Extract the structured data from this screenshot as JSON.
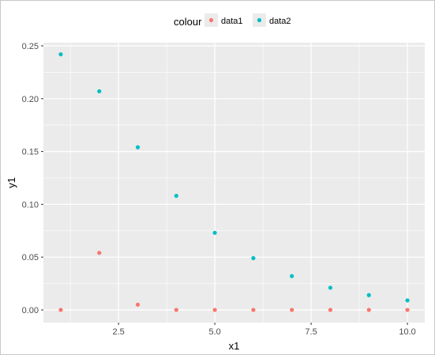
{
  "chart_data": {
    "type": "scatter",
    "title": "",
    "xlabel": "x1",
    "ylabel": "y1",
    "xlim": [
      0.55,
      10.45
    ],
    "ylim": [
      -0.012,
      0.253
    ],
    "x_ticks": [
      2.5,
      5.0,
      7.5,
      10.0
    ],
    "x_tick_labels": [
      "2.5",
      "5.0",
      "7.5",
      "10.0"
    ],
    "x_minor_ticks": [
      1.25,
      3.75,
      6.25,
      8.75
    ],
    "y_ticks": [
      0.0,
      0.05,
      0.1,
      0.15,
      0.2,
      0.25
    ],
    "y_tick_labels": [
      "0.00",
      "0.05",
      "0.10",
      "0.15",
      "0.20",
      "0.25"
    ],
    "y_minor_ticks": [
      0.025,
      0.075,
      0.125,
      0.175,
      0.225
    ],
    "grid": true,
    "legend": {
      "title": "colour",
      "position": "top",
      "entries": [
        "data1",
        "data2"
      ]
    },
    "colors": {
      "data1": "#F8766D",
      "data2": "#00BFC4",
      "panel_background": "#EBEBEB",
      "grid_line": "#FFFFFF"
    },
    "series": [
      {
        "name": "data1",
        "x": [
          1,
          2,
          3,
          4,
          5,
          6,
          7,
          8,
          9,
          10
        ],
        "y": [
          0.0,
          0.054,
          0.005,
          0.0,
          0.0,
          0.0,
          0.0,
          0.0,
          0.0,
          0.0
        ]
      },
      {
        "name": "data2",
        "x": [
          1,
          2,
          3,
          4,
          5,
          6,
          7,
          8,
          9,
          10
        ],
        "y": [
          0.242,
          0.207,
          0.154,
          0.108,
          0.073,
          0.049,
          0.032,
          0.021,
          0.014,
          0.009
        ]
      }
    ]
  }
}
